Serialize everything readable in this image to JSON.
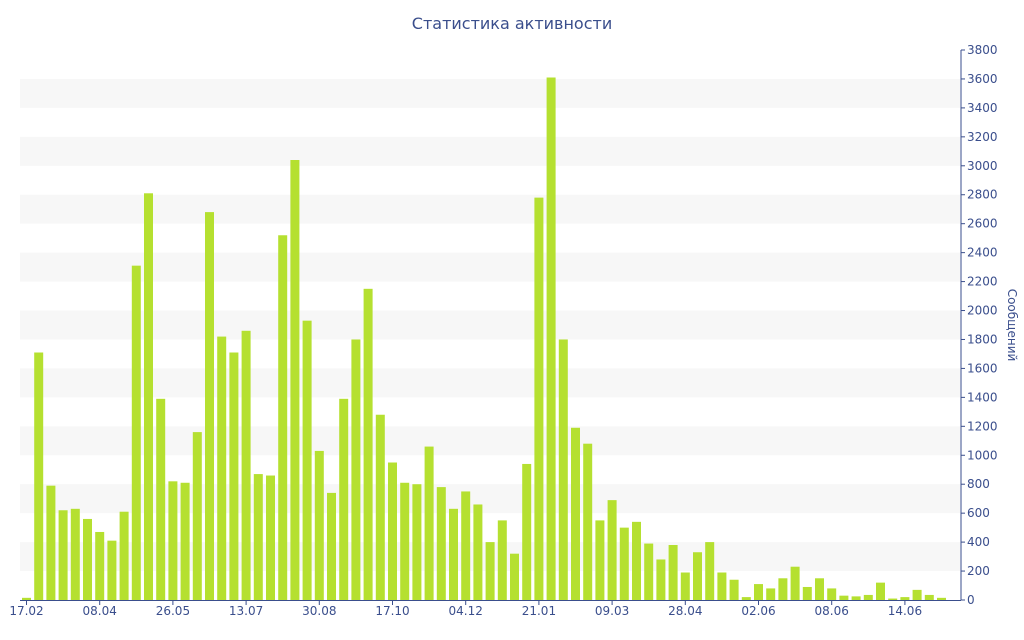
{
  "chart_data": {
    "type": "bar",
    "title": "Статистика активности",
    "ylabel": "Сообщений",
    "xlabel": "",
    "ylim": [
      0,
      3800
    ],
    "yticks": [
      0,
      200,
      400,
      600,
      800,
      1000,
      1200,
      1400,
      1600,
      1800,
      2000,
      2200,
      2400,
      2600,
      2800,
      3000,
      3200,
      3400,
      3600,
      3800
    ],
    "y_axis_side": "right",
    "grid": "alternating horizontal bands",
    "x_tick_labels": [
      {
        "index": 0,
        "label": "17.02"
      },
      {
        "index": 6,
        "label": "08.04"
      },
      {
        "index": 12,
        "label": "26.05"
      },
      {
        "index": 18,
        "label": "13.07"
      },
      {
        "index": 24,
        "label": "30.08"
      },
      {
        "index": 30,
        "label": "17.10"
      },
      {
        "index": 36,
        "label": "04.12"
      },
      {
        "index": 42,
        "label": "21.01"
      },
      {
        "index": 48,
        "label": "09.03"
      },
      {
        "index": 54,
        "label": "28.04"
      },
      {
        "index": 60,
        "label": "02.06"
      },
      {
        "index": 66,
        "label": "08.06"
      },
      {
        "index": 72,
        "label": "14.06"
      }
    ],
    "values": [
      15,
      1710,
      790,
      620,
      630,
      560,
      470,
      410,
      610,
      2310,
      2810,
      1390,
      820,
      810,
      1160,
      2680,
      1820,
      1710,
      1860,
      870,
      860,
      2520,
      3040,
      1930,
      1030,
      740,
      1390,
      1800,
      2150,
      1280,
      950,
      810,
      800,
      1060,
      780,
      630,
      750,
      660,
      400,
      550,
      320,
      940,
      2780,
      3610,
      1800,
      1190,
      1080,
      550,
      690,
      500,
      540,
      390,
      280,
      380,
      190,
      330,
      400,
      190,
      140,
      20,
      110,
      80,
      150,
      230,
      90,
      150,
      80,
      30,
      25,
      35,
      120,
      10,
      20,
      70,
      35,
      15
    ],
    "bar_color": "#b5e030",
    "text_color": "#3a4e8c"
  }
}
